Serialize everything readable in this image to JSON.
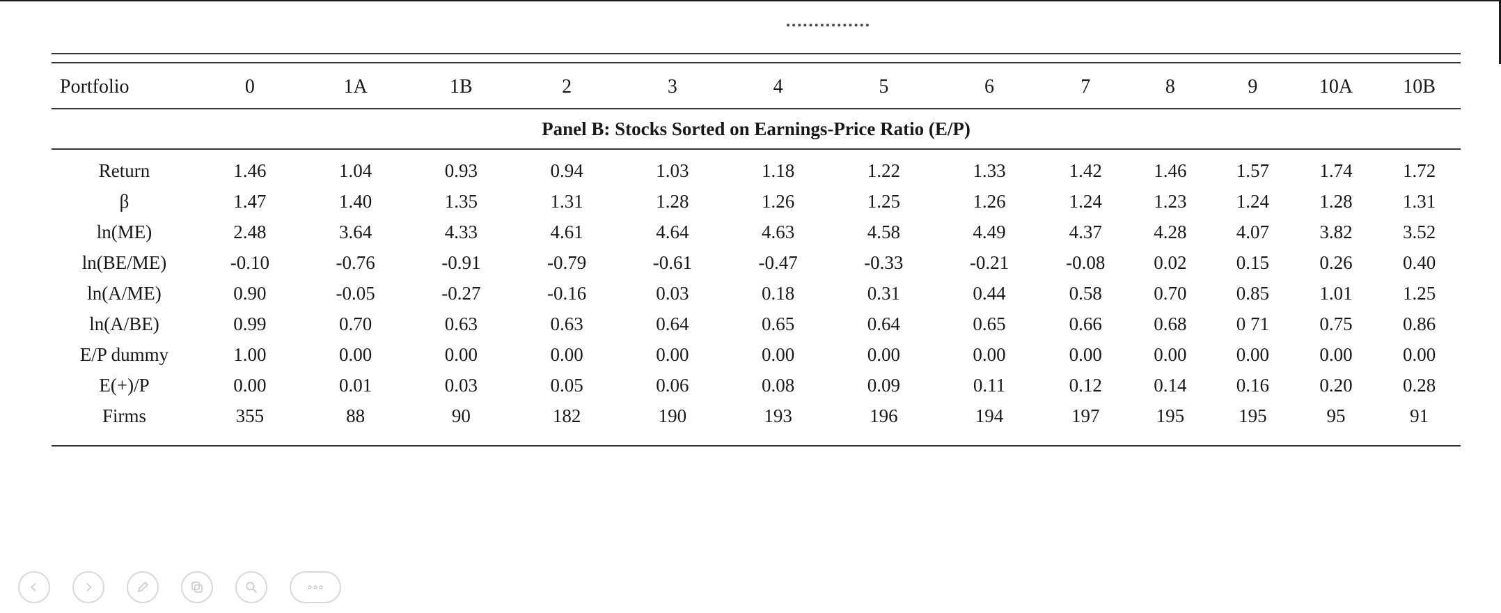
{
  "table": {
    "columns": [
      "Portfolio",
      "0",
      "1A",
      "1B",
      "2",
      "3",
      "4",
      "5",
      "6",
      "7",
      "8",
      "9",
      "10A",
      "10B"
    ],
    "panel_title": "Panel B: Stocks Sorted on Earnings-Price Ratio (E/P)",
    "rows": [
      {
        "label": "Return",
        "values": [
          "1.46",
          "1.04",
          "0.93",
          "0.94",
          "1.03",
          "1.18",
          "1.22",
          "1.33",
          "1.42",
          "1.46",
          "1.57",
          "1.74",
          "1.72"
        ]
      },
      {
        "label": "β",
        "values": [
          "1.47",
          "1.40",
          "1.35",
          "1.31",
          "1.28",
          "1.26",
          "1.25",
          "1.26",
          "1.24",
          "1.23",
          "1.24",
          "1.28",
          "1.31"
        ]
      },
      {
        "label": "ln(ME)",
        "values": [
          "2.48",
          "3.64",
          "4.33",
          "4.61",
          "4.64",
          "4.63",
          "4.58",
          "4.49",
          "4.37",
          "4.28",
          "4.07",
          "3.82",
          "3.52"
        ]
      },
      {
        "label": "ln(BE/ME)",
        "values": [
          "-0.10",
          "-0.76",
          "-0.91",
          "-0.79",
          "-0.61",
          "-0.47",
          "-0.33",
          "-0.21",
          "-0.08",
          "0.02",
          "0.15",
          "0.26",
          "0.40"
        ]
      },
      {
        "label": "ln(A/ME)",
        "values": [
          "0.90",
          "-0.05",
          "-0.27",
          "-0.16",
          "0.03",
          "0.18",
          "0.31",
          "0.44",
          "0.58",
          "0.70",
          "0.85",
          "1.01",
          "1.25"
        ]
      },
      {
        "label": "ln(A/BE)",
        "values": [
          "0.99",
          "0.70",
          "0.63",
          "0.63",
          "0.64",
          "0.65",
          "0.64",
          "0.65",
          "0.66",
          "0.68",
          "0 71",
          "0.75",
          "0.86"
        ]
      },
      {
        "label": "E/P dummy",
        "values": [
          "1.00",
          "0.00",
          "0.00",
          "0.00",
          "0.00",
          "0.00",
          "0.00",
          "0.00",
          "0.00",
          "0.00",
          "0.00",
          "0.00",
          "0.00"
        ]
      },
      {
        "label": "E(+)/P",
        "values": [
          "0.00",
          "0.01",
          "0.03",
          "0.05",
          "0.06",
          "0.08",
          "0.09",
          "0.11",
          "0.12",
          "0.14",
          "0.16",
          "0.20",
          "0.28"
        ]
      },
      {
        "label": "Firms",
        "values": [
          "355",
          "88",
          "90",
          "182",
          "190",
          "193",
          "196",
          "194",
          "197",
          "195",
          "195",
          "95",
          "91"
        ]
      }
    ]
  },
  "toolbar": {
    "buttons": [
      {
        "name": "back"
      },
      {
        "name": "forward"
      },
      {
        "name": "pen"
      },
      {
        "name": "copy"
      },
      {
        "name": "zoom"
      },
      {
        "name": "more"
      }
    ]
  },
  "colors": {
    "ink": "#181818",
    "rule": "#343434",
    "control_gray": "#cfcfcf"
  }
}
